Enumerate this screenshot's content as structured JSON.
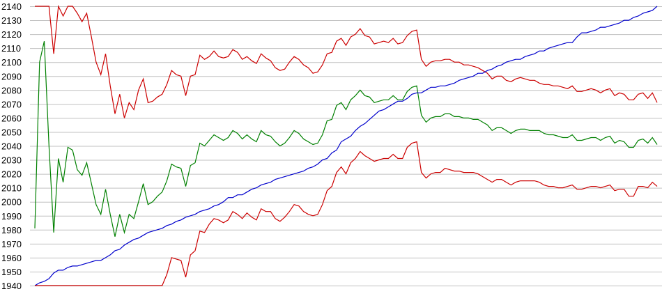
{
  "chart_data": {
    "type": "line",
    "title": "",
    "xlabel": "",
    "ylabel": "",
    "ylim": [
      1940,
      2140
    ],
    "y_ticks": [
      "2140",
      "2130",
      "2120",
      "2110",
      "2100",
      "2090",
      "2080",
      "2070",
      "2060",
      "2050",
      "2040",
      "2030",
      "2020",
      "2010",
      "2000",
      "1990",
      "1980",
      "1970",
      "1960",
      "1950",
      "1940"
    ],
    "grid": "horizontal",
    "legend": "none",
    "series": [
      {
        "color": "#cc0000",
        "values": [
          2140,
          2140,
          2140,
          2140,
          2106,
          2140,
          2133,
          2140,
          2140,
          2135,
          2129,
          2135,
          2118,
          2100,
          2091,
          2106,
          2083,
          2063,
          2077,
          2060,
          2071,
          2066,
          2080,
          2088,
          2071,
          2072,
          2075,
          2077,
          2084,
          2094,
          2091,
          2090,
          2076,
          2090,
          2091,
          2105,
          2102,
          2104,
          2108,
          2104,
          2103,
          2104,
          2109,
          2107,
          2102,
          2104,
          2101,
          2099,
          2106,
          2103,
          2101,
          2096,
          2094,
          2095,
          2100,
          2104,
          2102,
          2098,
          2096,
          2092,
          2093,
          2098,
          2106,
          2107,
          2115,
          2117,
          2112,
          2118,
          2120,
          2124,
          2119,
          2118,
          2113,
          2114,
          2115,
          2114,
          2117,
          2113,
          2114,
          2119,
          2122,
          2123,
          2102,
          2097,
          2100,
          2101,
          2101,
          2102,
          2102,
          2100,
          2100,
          2098,
          2098,
          2097,
          2096,
          2094,
          2092,
          2088,
          2090,
          2090,
          2087,
          2086,
          2088,
          2089,
          2088,
          2087,
          2087,
          2085,
          2084,
          2084,
          2083,
          2083,
          2082,
          2081,
          2083,
          2079,
          2079,
          2080,
          2081,
          2080,
          2078,
          2080,
          2081,
          2076,
          2078,
          2077,
          2073,
          2073,
          2077,
          2078,
          2074,
          2078,
          2071
        ]
      },
      {
        "color": "#008000",
        "values": [
          1981,
          2100,
          2115,
          2040,
          1978,
          2031,
          2014,
          2039,
          2037,
          2023,
          2019,
          2028,
          2013,
          1998,
          1991,
          2009,
          1991,
          1975,
          1991,
          1978,
          1991,
          1988,
          2000,
          2013,
          1998,
          2000,
          2004,
          2007,
          2015,
          2027,
          2025,
          2024,
          2011,
          2026,
          2028,
          2042,
          2040,
          2044,
          2048,
          2046,
          2044,
          2046,
          2051,
          2049,
          2045,
          2048,
          2045,
          2043,
          2051,
          2048,
          2047,
          2043,
          2040,
          2042,
          2046,
          2051,
          2049,
          2045,
          2043,
          2041,
          2042,
          2048,
          2058,
          2059,
          2069,
          2071,
          2066,
          2073,
          2076,
          2080,
          2076,
          2075,
          2071,
          2072,
          2073,
          2073,
          2076,
          2073,
          2073,
          2079,
          2082,
          2083,
          2062,
          2057,
          2060,
          2061,
          2061,
          2063,
          2063,
          2061,
          2061,
          2060,
          2060,
          2059,
          2059,
          2057,
          2055,
          2051,
          2053,
          2053,
          2051,
          2049,
          2051,
          2052,
          2052,
          2051,
          2051,
          2051,
          2049,
          2048,
          2048,
          2047,
          2046,
          2046,
          2048,
          2044,
          2044,
          2045,
          2046,
          2046,
          2044,
          2046,
          2047,
          2042,
          2044,
          2043,
          2039,
          2039,
          2044,
          2045,
          2042,
          2046,
          2041
        ]
      },
      {
        "color": "#0000cc",
        "values": [
          1940,
          1942,
          1943,
          1945,
          1949,
          1951,
          1951,
          1953,
          1954,
          1954,
          1955,
          1956,
          1957,
          1958,
          1958,
          1960,
          1962,
          1965,
          1966,
          1969,
          1971,
          1973,
          1974,
          1976,
          1978,
          1979,
          1980,
          1981,
          1983,
          1984,
          1986,
          1987,
          1989,
          1990,
          1991,
          1993,
          1994,
          1995,
          1997,
          1998,
          2000,
          2003,
          2003,
          2005,
          2005,
          2007,
          2009,
          2010,
          2012,
          2013,
          2014,
          2016,
          2017,
          2018,
          2019,
          2020,
          2021,
          2022,
          2024,
          2025,
          2027,
          2030,
          2031,
          2035,
          2037,
          2043,
          2045,
          2047,
          2051,
          2054,
          2056,
          2059,
          2062,
          2065,
          2066,
          2068,
          2070,
          2072,
          2072,
          2074,
          2077,
          2078,
          2078,
          2080,
          2082,
          2082,
          2083,
          2083,
          2084,
          2085,
          2087,
          2088,
          2089,
          2090,
          2092,
          2092,
          2094,
          2095,
          2097,
          2098,
          2100,
          2101,
          2102,
          2102,
          2104,
          2105,
          2106,
          2108,
          2108,
          2110,
          2111,
          2112,
          2113,
          2114,
          2114,
          2118,
          2121,
          2121,
          2122,
          2123,
          2125,
          2125,
          2126,
          2127,
          2128,
          2130,
          2130,
          2132,
          2133,
          2135,
          2136,
          2137,
          2140
        ]
      },
      {
        "color": "#cc0000",
        "values": [
          1940,
          1940,
          1940,
          1940,
          1940,
          1940,
          1940,
          1940,
          1940,
          1940,
          1940,
          1940,
          1940,
          1940,
          1940,
          1940,
          1940,
          1940,
          1940,
          1940,
          1940,
          1940,
          1940,
          1940,
          1940,
          1940,
          1940,
          1940,
          1948,
          1960,
          1959,
          1958,
          1946,
          1962,
          1965,
          1979,
          1978,
          1984,
          1988,
          1987,
          1985,
          1987,
          1993,
          1991,
          1988,
          1992,
          1989,
          1987,
          1995,
          1993,
          1993,
          1988,
          1986,
          1989,
          1993,
          1998,
          1997,
          1993,
          1991,
          1990,
          1991,
          1998,
          2008,
          2011,
          2021,
          2025,
          2020,
          2028,
          2031,
          2036,
          2033,
          2031,
          2029,
          2030,
          2031,
          2031,
          2034,
          2031,
          2031,
          2039,
          2042,
          2043,
          2021,
          2017,
          2020,
          2021,
          2021,
          2024,
          2023,
          2022,
          2022,
          2021,
          2021,
          2021,
          2020,
          2018,
          2016,
          2014,
          2016,
          2016,
          2014,
          2012,
          2014,
          2015,
          2015,
          2015,
          2015,
          2014,
          2012,
          2011,
          2011,
          2010,
          2010,
          2011,
          2012,
          2009,
          2009,
          2010,
          2011,
          2011,
          2010,
          2011,
          2012,
          2008,
          2009,
          2009,
          2004,
          2004,
          2011,
          2011,
          2010,
          2014,
          2011
        ]
      }
    ],
    "grid_color": "#c0c0c0"
  }
}
